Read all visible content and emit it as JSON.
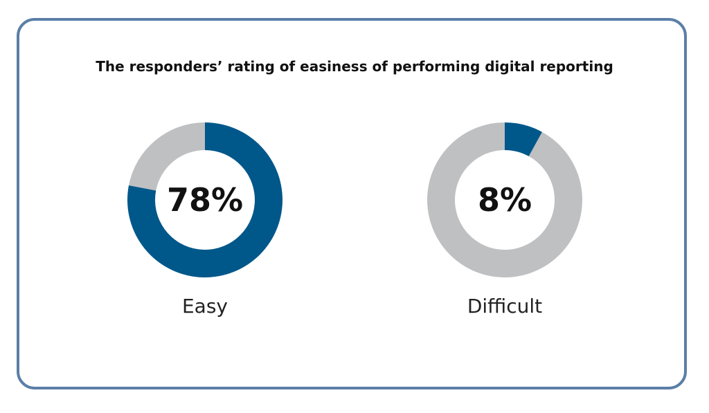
{
  "title": "The responders’ rating of easiness of performing digital reporting",
  "colors": {
    "value": "#00578a",
    "remainder": "#bfc0c2",
    "border": "#5b7fa6"
  },
  "chart_data": [
    {
      "type": "pie",
      "category": "Easy",
      "value": 78,
      "value_label": "78%",
      "max": 100
    },
    {
      "type": "pie",
      "category": "Difficult",
      "value": 8,
      "value_label": "8%",
      "max": 100
    }
  ]
}
